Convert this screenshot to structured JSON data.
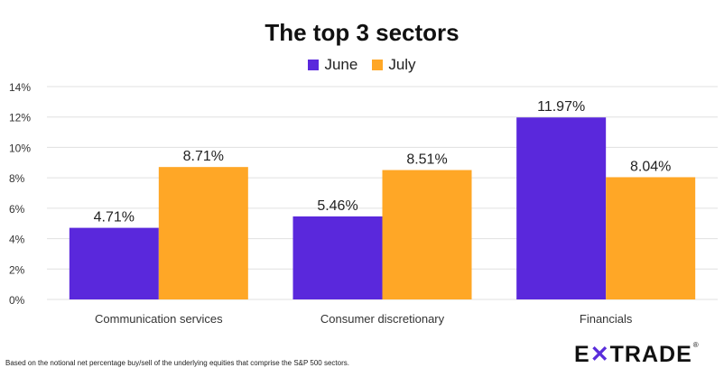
{
  "colors": {
    "june": "#5a28dc",
    "july": "#ffa726",
    "grid": "#e0e0e0",
    "text": "#333333"
  },
  "footnote": "Based on the notional net percentage buy/sell of the underlying equities that comprise the S&P 500 sectors.",
  "logo": {
    "text": "E*TRADE",
    "registered": "®"
  },
  "chart_data": {
    "type": "bar",
    "title": "The top 3 sectors",
    "xlabel": "",
    "ylabel": "",
    "categories": [
      "Communication services",
      "Consumer discretionary",
      "Financials"
    ],
    "series": [
      {
        "name": "June",
        "values": [
          4.71,
          5.46,
          11.97
        ],
        "labels": [
          "4.71%",
          "5.46%",
          "11.97%"
        ]
      },
      {
        "name": "July",
        "values": [
          8.71,
          8.51,
          8.04
        ],
        "labels": [
          "8.71%",
          "8.51%",
          "8.04%"
        ]
      }
    ],
    "ylim": [
      0,
      14
    ],
    "yticks": [
      0,
      2,
      4,
      6,
      8,
      10,
      12,
      14
    ],
    "ytick_labels": [
      "0%",
      "2%",
      "4%",
      "6%",
      "8%",
      "10%",
      "12%",
      "14%"
    ],
    "grid": "horizontal",
    "legend_position": "top-center"
  }
}
